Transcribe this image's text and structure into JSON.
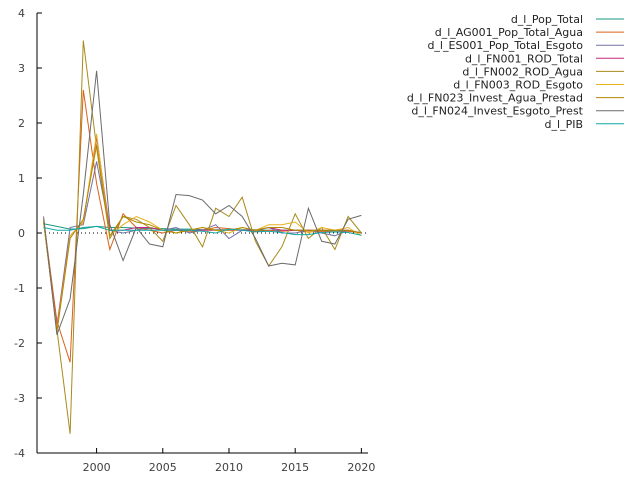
{
  "chart_data": {
    "type": "line",
    "title": "",
    "xlabel": "",
    "ylabel": "",
    "xlim": [
      1995.5,
      2020.5
    ],
    "ylim": [
      -4,
      4
    ],
    "xticks": [
      2000,
      2005,
      2010,
      2015,
      2020
    ],
    "yticks": [
      -4,
      -3,
      -2,
      -1,
      0,
      1,
      2,
      3,
      4
    ],
    "zero_line": "dotted",
    "grid": false,
    "legend": "top-right",
    "x": [
      1996,
      1997,
      1998,
      1999,
      2000,
      2001,
      2002,
      2003,
      2004,
      2005,
      2006,
      2007,
      2008,
      2009,
      2010,
      2011,
      2012,
      2013,
      2014,
      2015,
      2016,
      2017,
      2018,
      2019,
      2020
    ],
    "series": [
      {
        "name": "d_l_Pop_Total",
        "color": "#1a9a82",
        "values": [
          0.17,
          0.12,
          0.07,
          0.08,
          0.12,
          0.1,
          0.1,
          0.09,
          0.08,
          0.08,
          0.07,
          0.07,
          0.06,
          0.06,
          0.06,
          0.06,
          0.06,
          0.05,
          0.05,
          0.05,
          0.05,
          0.04,
          0.04,
          0.04,
          0.01
        ]
      },
      {
        "name": "d_l_AG001_Pop_Total_Agua",
        "color": "#d9621a",
        "values": [
          0.25,
          -1.6,
          -2.35,
          2.6,
          0.9,
          -0.3,
          0.35,
          0.1,
          0.05,
          0.0,
          0.05,
          0.02,
          0.05,
          0.1,
          0.08,
          0.05,
          0.03,
          0.05,
          0.03,
          0.05,
          0.02,
          0.03,
          0.02,
          0.03,
          0.0
        ]
      },
      {
        "name": "d_l_ES001_Pop_Total_Esgoto",
        "color": "#7272a8",
        "values": [
          0.2,
          -1.7,
          0.1,
          0.15,
          1.3,
          0.05,
          0.0,
          0.05,
          0.1,
          0.05,
          0.1,
          0.0,
          0.05,
          0.15,
          -0.1,
          0.05,
          0.05,
          0.1,
          0.0,
          0.0,
          0.05,
          0.0,
          -0.05,
          0.05,
          0.0
        ]
      },
      {
        "name": "d_l_FN001_ROD_Total",
        "color": "#c8267a",
        "values": [
          0.2,
          -1.7,
          -0.05,
          0.2,
          1.75,
          0.05,
          0.05,
          0.1,
          0.1,
          0.05,
          0.05,
          0.05,
          0.05,
          0.05,
          0.05,
          0.05,
          0.05,
          0.1,
          0.05,
          0.05,
          0.05,
          0.05,
          0.05,
          0.05,
          0.0
        ]
      },
      {
        "name": "d_l_FN002_ROD_Agua",
        "color": "#a88a1a",
        "values": [
          0.2,
          -1.75,
          -3.65,
          3.5,
          1.55,
          -0.1,
          0.3,
          0.25,
          0.1,
          -0.15,
          0.5,
          0.15,
          -0.25,
          0.45,
          0.3,
          0.65,
          -0.15,
          -0.6,
          -0.25,
          0.35,
          -0.1,
          0.1,
          -0.3,
          0.3,
          0.0
        ]
      },
      {
        "name": "d_l_FN003_ROD_Esgoto",
        "color": "#e8b01a",
        "values": [
          0.2,
          -1.75,
          -0.05,
          0.2,
          1.8,
          -0.05,
          0.15,
          0.3,
          0.2,
          0.05,
          0.0,
          0.05,
          0.1,
          0.05,
          0.0,
          0.1,
          0.05,
          0.15,
          0.15,
          0.2,
          0.0,
          0.1,
          0.05,
          0.1,
          -0.05
        ]
      },
      {
        "name": "d_l_FN023_Invest_Agua_Prestad",
        "color": "#b08a00",
        "values": [
          0.25,
          -1.8,
          -0.1,
          0.25,
          1.6,
          -0.05,
          0.3,
          0.2,
          0.15,
          0.05,
          0.0,
          0.05,
          0.1,
          0.05,
          0.05,
          0.1,
          0.05,
          0.1,
          0.1,
          0.05,
          0.05,
          0.05,
          0.05,
          0.05,
          0.0
        ]
      },
      {
        "name": "d_l_FN024_Invest_Esgoto_Prest",
        "color": "#6b6b6b",
        "values": [
          0.3,
          -1.85,
          -1.2,
          0.7,
          2.95,
          0.15,
          -0.5,
          0.1,
          -0.2,
          -0.25,
          0.7,
          0.68,
          0.6,
          0.35,
          0.5,
          0.3,
          -0.1,
          -0.6,
          -0.55,
          -0.58,
          0.45,
          -0.15,
          -0.2,
          0.25,
          0.32
        ]
      },
      {
        "name": "d_l_PIB",
        "color": "#12a8a8",
        "values": [
          0.1,
          0.05,
          0.05,
          0.1,
          0.12,
          0.05,
          0.05,
          0.05,
          0.05,
          0.05,
          0.05,
          0.05,
          0.03,
          0.0,
          0.07,
          0.05,
          0.02,
          0.03,
          0.01,
          -0.03,
          -0.03,
          0.01,
          0.02,
          0.01,
          -0.04
        ]
      }
    ]
  }
}
